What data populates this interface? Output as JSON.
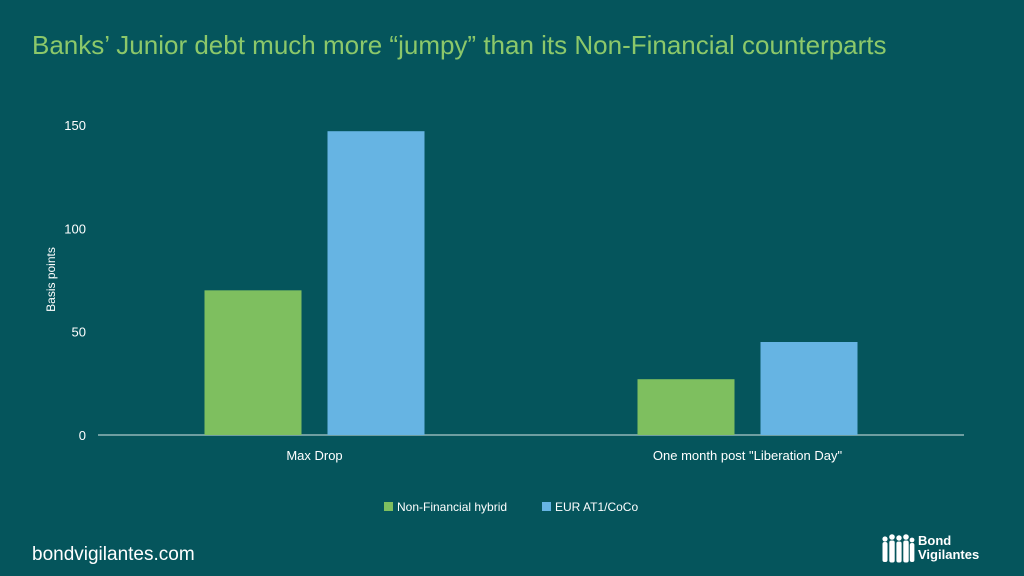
{
  "title": "Banks’ Junior debt much more “jumpy” than its Non-Financial counterparts",
  "footer": "bondvigilantes.com",
  "brand": {
    "line1": "Bond",
    "line2": "Vigilantes"
  },
  "colors": {
    "background": "#05555c",
    "title": "#8cc86a",
    "series1": "#7ebf5f",
    "series2": "#66b4e3"
  },
  "chart_data": {
    "type": "bar",
    "categories": [
      "Max Drop",
      "One month post \"Liberation Day\""
    ],
    "series": [
      {
        "name": "Non-Financial hybrid",
        "values": [
          70,
          27
        ]
      },
      {
        "name": "EUR AT1/CoCo",
        "values": [
          147,
          45
        ]
      }
    ],
    "ylabel": "Basis points",
    "yticks": [
      0,
      50,
      100,
      150
    ],
    "ylim": [
      0,
      150
    ],
    "grid": false,
    "legend": "bottom"
  }
}
